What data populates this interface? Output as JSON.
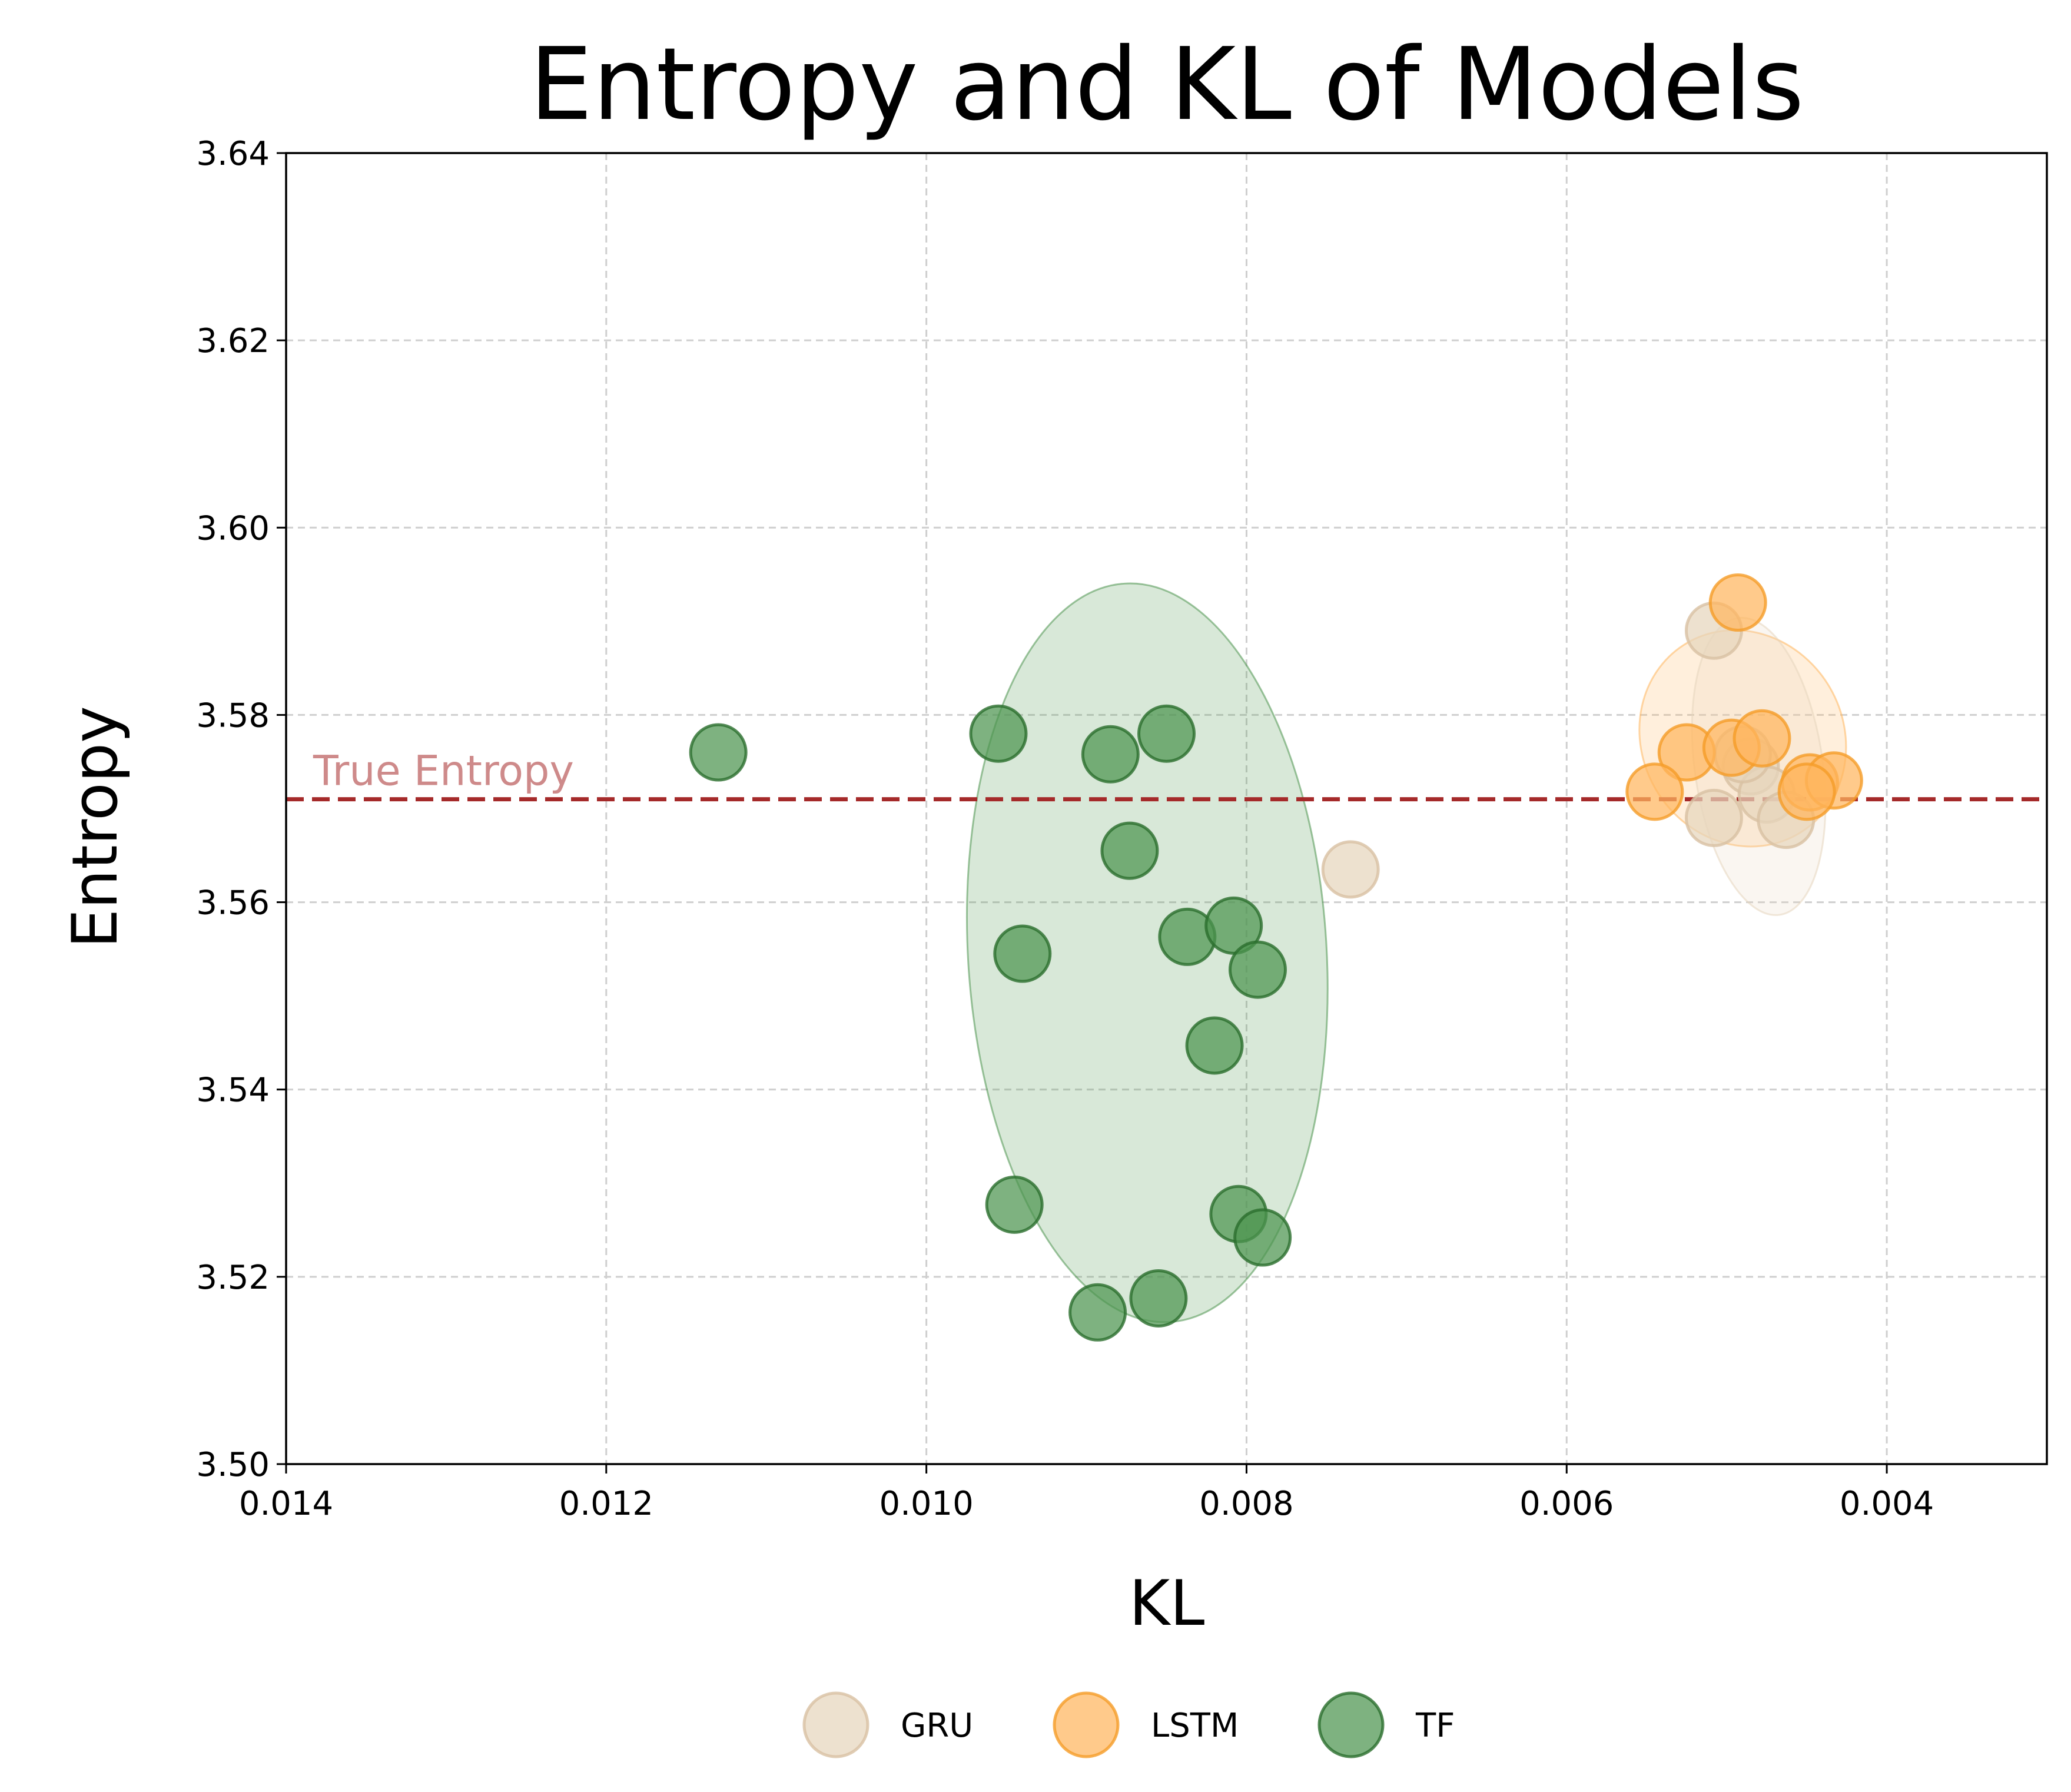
{
  "chart_data": {
    "type": "scatter",
    "title": "Entropy and KL of Models",
    "xlabel": "KL",
    "ylabel": "Entropy",
    "xlim": [
      0.014,
      0.003
    ],
    "ylim": [
      3.5,
      3.64
    ],
    "x_inverted": true,
    "xticks": [
      "0.014",
      "0.012",
      "0.010",
      "0.008",
      "0.006",
      "0.004"
    ],
    "yticks": [
      "3.50",
      "3.52",
      "3.54",
      "3.56",
      "3.58",
      "3.60",
      "3.62",
      "3.64"
    ],
    "grid": true,
    "legend_position": "bottom-center",
    "reference_line": {
      "y": 3.571,
      "label": "True Entropy",
      "color": "#a52a2a"
    },
    "series": [
      {
        "name": "GRU",
        "color": "#e6d5bd",
        "edge": "#d8c1a3",
        "points": [
          [
            0.00735,
            3.5635
          ],
          [
            0.00508,
            3.589
          ],
          [
            0.00485,
            3.5745
          ],
          [
            0.00475,
            3.5715
          ],
          [
            0.00463,
            3.5688
          ],
          [
            0.00508,
            3.569
          ],
          [
            0.0049,
            3.5758
          ]
        ]
      },
      {
        "name": "LSTM",
        "color": "#ffb65e",
        "edge": "#f59c28",
        "points": [
          [
            0.00493,
            3.592
          ],
          [
            0.00525,
            3.576
          ],
          [
            0.00497,
            3.5765
          ],
          [
            0.00478,
            3.5775
          ],
          [
            0.00545,
            3.5718
          ],
          [
            0.00448,
            3.5728
          ],
          [
            0.00433,
            3.573
          ],
          [
            0.0045,
            3.5718
          ]
        ]
      },
      {
        "name": "TF",
        "color": "#4c944f",
        "edge": "#2a6e2d",
        "points": [
          [
            0.0113,
            3.576
          ],
          [
            0.00955,
            3.578
          ],
          [
            0.00885,
            3.5758
          ],
          [
            0.0085,
            3.578
          ],
          [
            0.00873,
            3.5655
          ],
          [
            0.0094,
            3.5545
          ],
          [
            0.00837,
            3.5563
          ],
          [
            0.00808,
            3.5575
          ],
          [
            0.00793,
            3.5528
          ],
          [
            0.0082,
            3.5447
          ],
          [
            0.00945,
            3.5277
          ],
          [
            0.00805,
            3.5267
          ],
          [
            0.0079,
            3.5242
          ],
          [
            0.00855,
            3.5177
          ],
          [
            0.00893,
            3.5162
          ]
        ]
      }
    ],
    "ellipses": [
      {
        "series": "TF",
        "center": [
          0.00862,
          3.5546
        ],
        "x_half": 0.00112,
        "y_half": 0.0395,
        "angle_deg": -3.5,
        "color": "#4c944f"
      },
      {
        "series": "LSTM",
        "center": [
          0.0049,
          3.5775
        ],
        "x_half": 0.00063,
        "y_half": 0.0118,
        "angle_deg": -30,
        "color": "#ffb65e"
      },
      {
        "series": "GRU",
        "center": [
          0.0048,
          3.5745
        ],
        "x_half": 0.0004,
        "y_half": 0.016,
        "angle_deg": -8,
        "color": "#e6d5bd"
      }
    ]
  }
}
